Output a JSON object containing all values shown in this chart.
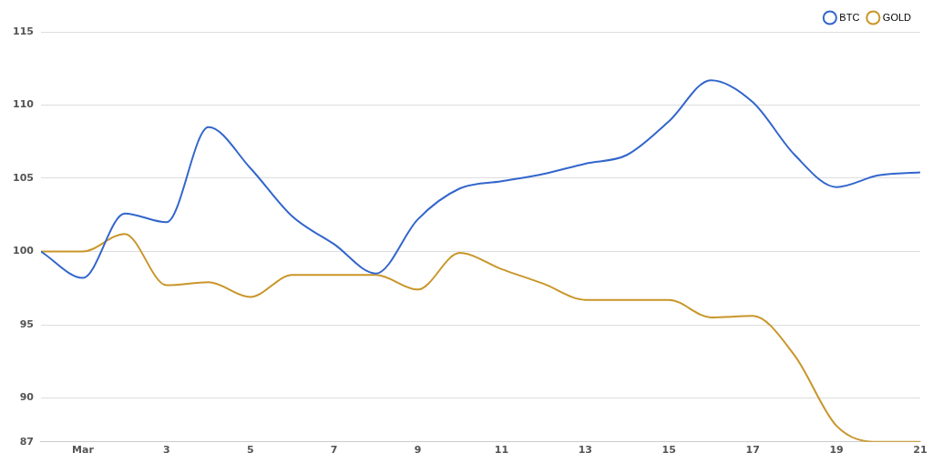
{
  "chart_data": {
    "type": "line",
    "x": [
      "--02-29",
      "--03-01",
      "--03-02",
      "--03-03",
      "--03-04",
      "--03-05",
      "--03-06",
      "--03-07",
      "--03-08",
      "--03-09",
      "--03-10",
      "--03-11",
      "--03-12",
      "--03-13",
      "--03-14",
      "--03-15",
      "--03-16",
      "--03-17",
      "--03-18",
      "--03-19",
      "--03-20",
      "--03-21"
    ],
    "series": [
      {
        "name": "BTC",
        "color": "#3366cc",
        "values": [
          100,
          98.2,
          102.6,
          102.0,
          108.5,
          105.7,
          102.4,
          100.5,
          98.5,
          102.2,
          104.3,
          104.8,
          105.3,
          106.0,
          106.6,
          108.9,
          111.7,
          110.2,
          106.6,
          104.4,
          105.2,
          105.4
        ]
      },
      {
        "name": "GOLD",
        "color": "#c9962a",
        "values": [
          100,
          100,
          101.2,
          97.7,
          97.9,
          96.9,
          98.4,
          98.4,
          98.4,
          97.4,
          99.9,
          98.8,
          97.8,
          96.7,
          96.7,
          96.7,
          95.5,
          95.6,
          92.9,
          88.1,
          87.0,
          87.0
        ]
      }
    ],
    "xlim": [
      "--02-29",
      "--03-21"
    ],
    "xticks": [
      {
        "value": "--03-01",
        "label": "Mar"
      },
      {
        "value": "--03-03",
        "label": "3"
      },
      {
        "value": "--03-05",
        "label": "5"
      },
      {
        "value": "--03-07",
        "label": "7"
      },
      {
        "value": "--03-09",
        "label": "9"
      },
      {
        "value": "--03-11",
        "label": "11"
      },
      {
        "value": "--03-13",
        "label": "13"
      },
      {
        "value": "--03-15",
        "label": "15"
      },
      {
        "value": "--03-17",
        "label": "17"
      },
      {
        "value": "--03-19",
        "label": "19"
      },
      {
        "value": "--03-21",
        "label": "21"
      }
    ],
    "ylim": [
      87,
      115
    ],
    "yticks": [
      87,
      90,
      95,
      100,
      105,
      110,
      115
    ],
    "grid": "y",
    "legend": "top right",
    "marker": "none",
    "line_style": "solid"
  }
}
